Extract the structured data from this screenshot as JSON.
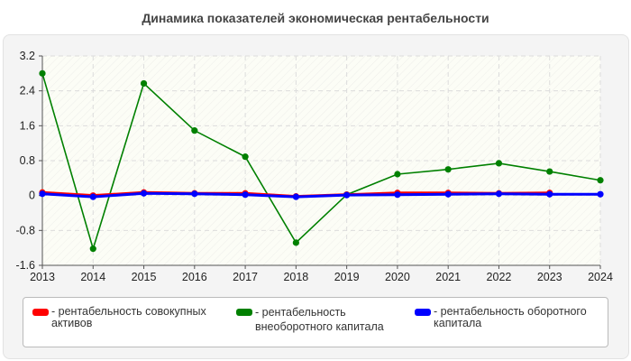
{
  "chart_data": {
    "type": "line",
    "title": "Динамика показателей экономическая рентабельности",
    "x": [
      "2013",
      "2014",
      "2015",
      "2016",
      "2017",
      "2018",
      "2019",
      "2020",
      "2021",
      "2022",
      "2023",
      "2024"
    ],
    "ylim": [
      -1.6,
      3.2
    ],
    "yticks": [
      "3.2",
      "2.4",
      "1.6",
      "0.8",
      "0",
      "-0.8",
      "-1.6"
    ],
    "grid": true,
    "legend_position": "bottom",
    "series": [
      {
        "name": "- рентабельность совокупных активов",
        "color": "#ff0000",
        "values": [
          0.07,
          0.0,
          0.07,
          0.05,
          0.05,
          -0.02,
          0.02,
          0.06,
          0.06,
          0.05,
          0.06,
          null
        ]
      },
      {
        "name": "- рентабельность внеоборотного капитала",
        "color": "#008000",
        "values": [
          2.8,
          -1.22,
          2.57,
          1.49,
          0.89,
          -1.08,
          0.02,
          0.49,
          0.6,
          0.74,
          0.55,
          0.35
        ]
      },
      {
        "name": "- рентабельность оборотного капитала",
        "color": "#0000ff",
        "values": [
          0.04,
          -0.03,
          0.05,
          0.04,
          0.02,
          -0.03,
          0.01,
          0.02,
          0.03,
          0.04,
          0.03,
          0.03
        ]
      }
    ]
  }
}
